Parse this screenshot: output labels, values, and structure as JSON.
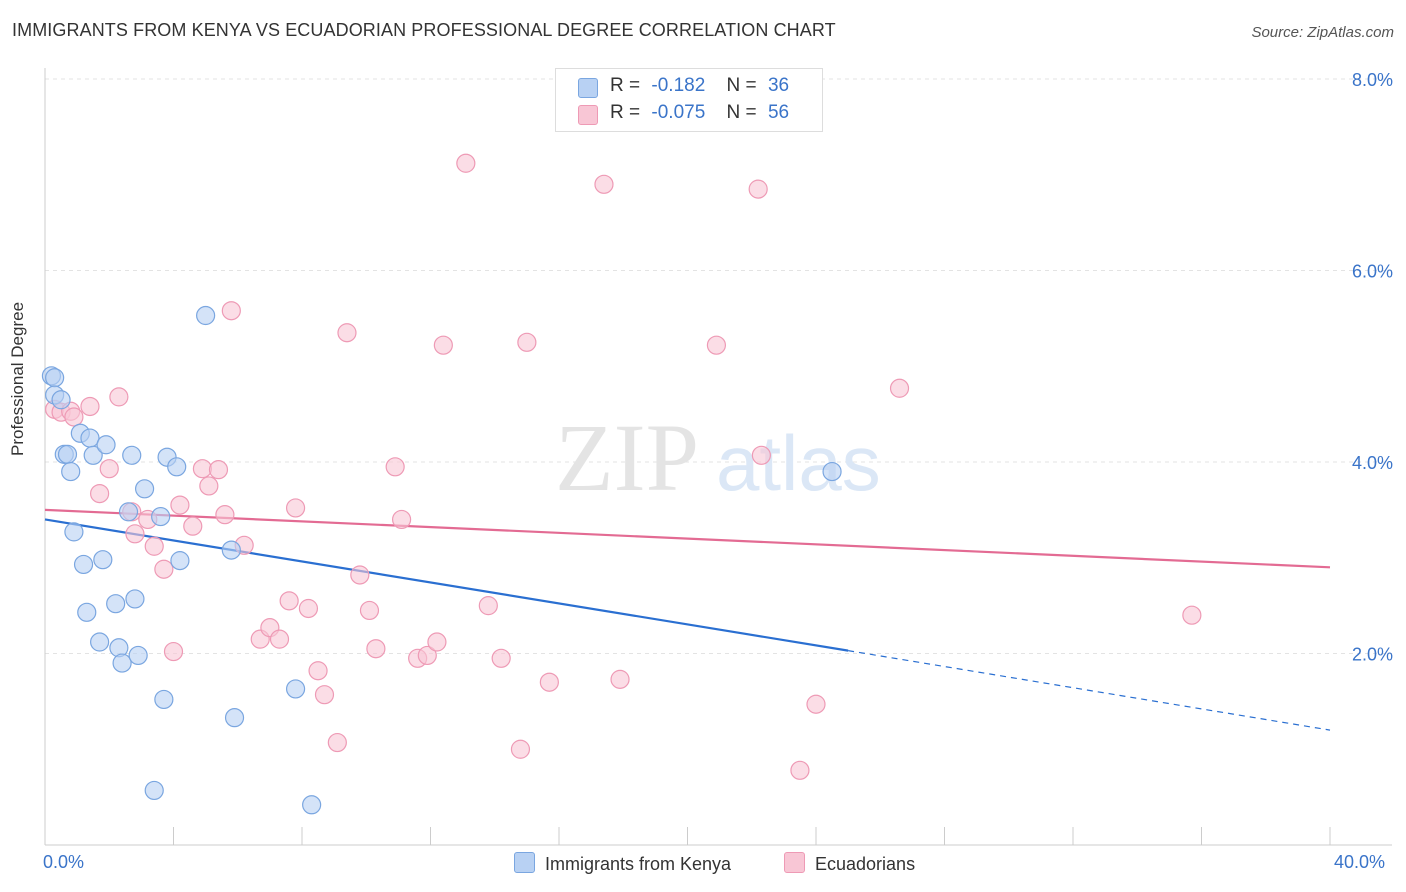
{
  "title": "IMMIGRANTS FROM KENYA VS ECUADORIAN PROFESSIONAL DEGREE CORRELATION CHART",
  "source": "Source: ZipAtlas.com",
  "watermark": {
    "part1": "ZIP",
    "part2": "atlas"
  },
  "colors": {
    "blue_fill": "#b8d1f3",
    "blue_stroke": "#7aa6e0",
    "blue_line": "#2a6fd1",
    "pink_fill": "#f8c6d5",
    "pink_stroke": "#ee9ab5",
    "pink_line": "#e36b93",
    "tick_label": "#3a74c9",
    "grid": "#e3e3e3"
  },
  "legend": {
    "rows": [
      {
        "r_label": "R =",
        "r_value": "-0.182",
        "n_label": "N =",
        "n_value": "36"
      },
      {
        "r_label": "R =",
        "r_value": "-0.075",
        "n_label": "N =",
        "n_value": "56"
      }
    ]
  },
  "chart_data": {
    "type": "scatter",
    "title": "IMMIGRANTS FROM KENYA VS ECUADORIAN PROFESSIONAL DEGREE CORRELATION CHART",
    "xlabel": "",
    "ylabel": "Professional Degree",
    "xlim": [
      0,
      40
    ],
    "ylim": [
      0,
      8
    ],
    "x_tick_labels": [
      "0.0%",
      "40.0%"
    ],
    "y_ticks": [
      2,
      4,
      6,
      8
    ],
    "y_tick_labels": [
      "2.0%",
      "4.0%",
      "6.0%",
      "8.0%"
    ],
    "grid": "horizontal dashed",
    "legend_position": "top-center",
    "series": [
      {
        "name": "Immigrants from Kenya",
        "color": "#7aa6e0",
        "points": [
          [
            0.2,
            4.9
          ],
          [
            0.3,
            4.88
          ],
          [
            0.3,
            4.7
          ],
          [
            0.5,
            4.65
          ],
          [
            0.6,
            4.08
          ],
          [
            0.7,
            4.08
          ],
          [
            0.8,
            3.9
          ],
          [
            0.9,
            3.27
          ],
          [
            1.1,
            4.3
          ],
          [
            1.2,
            2.93
          ],
          [
            1.3,
            2.43
          ],
          [
            1.4,
            4.25
          ],
          [
            1.5,
            4.07
          ],
          [
            1.7,
            2.12
          ],
          [
            1.8,
            2.98
          ],
          [
            1.9,
            4.18
          ],
          [
            2.2,
            2.52
          ],
          [
            2.3,
            2.06
          ],
          [
            2.4,
            1.9
          ],
          [
            2.6,
            3.48
          ],
          [
            2.7,
            4.07
          ],
          [
            2.8,
            2.57
          ],
          [
            2.9,
            1.98
          ],
          [
            3.1,
            3.72
          ],
          [
            3.4,
            0.57
          ],
          [
            3.6,
            3.43
          ],
          [
            3.7,
            1.52
          ],
          [
            3.8,
            4.05
          ],
          [
            4.1,
            3.95
          ],
          [
            4.2,
            2.97
          ],
          [
            5.0,
            5.53
          ],
          [
            5.8,
            3.08
          ],
          [
            5.9,
            1.33
          ],
          [
            7.8,
            1.63
          ],
          [
            8.3,
            0.42
          ],
          [
            24.5,
            3.9
          ]
        ]
      },
      {
        "name": "Ecuadorians",
        "color": "#ee9ab5",
        "points": [
          [
            0.3,
            4.55
          ],
          [
            0.5,
            4.52
          ],
          [
            0.8,
            4.53
          ],
          [
            0.9,
            4.47
          ],
          [
            1.4,
            4.58
          ],
          [
            1.7,
            3.67
          ],
          [
            2.0,
            3.93
          ],
          [
            2.3,
            4.68
          ],
          [
            2.7,
            3.48
          ],
          [
            2.8,
            3.25
          ],
          [
            3.2,
            3.4
          ],
          [
            3.4,
            3.12
          ],
          [
            3.7,
            2.88
          ],
          [
            4.0,
            2.02
          ],
          [
            4.2,
            3.55
          ],
          [
            4.6,
            3.33
          ],
          [
            4.9,
            3.93
          ],
          [
            5.1,
            3.75
          ],
          [
            5.4,
            3.92
          ],
          [
            5.6,
            3.45
          ],
          [
            5.8,
            5.58
          ],
          [
            6.2,
            3.13
          ],
          [
            6.7,
            2.15
          ],
          [
            7.0,
            2.27
          ],
          [
            7.3,
            2.15
          ],
          [
            7.6,
            2.55
          ],
          [
            7.8,
            3.52
          ],
          [
            8.2,
            2.47
          ],
          [
            8.5,
            1.82
          ],
          [
            8.7,
            1.57
          ],
          [
            9.1,
            1.07
          ],
          [
            9.4,
            5.35
          ],
          [
            9.8,
            2.82
          ],
          [
            10.1,
            2.45
          ],
          [
            10.3,
            2.05
          ],
          [
            10.9,
            3.95
          ],
          [
            11.1,
            3.4
          ],
          [
            11.6,
            1.95
          ],
          [
            11.9,
            1.98
          ],
          [
            12.2,
            2.12
          ],
          [
            12.4,
            5.22
          ],
          [
            13.1,
            7.12
          ],
          [
            13.8,
            2.5
          ],
          [
            14.2,
            1.95
          ],
          [
            14.8,
            1.0
          ],
          [
            15.0,
            5.25
          ],
          [
            15.7,
            1.7
          ],
          [
            17.4,
            6.9
          ],
          [
            17.9,
            1.73
          ],
          [
            20.9,
            5.22
          ],
          [
            22.2,
            6.85
          ],
          [
            22.3,
            4.07
          ],
          [
            23.5,
            0.78
          ],
          [
            24.0,
            1.47
          ],
          [
            26.6,
            4.77
          ],
          [
            35.7,
            2.4
          ]
        ]
      }
    ],
    "trendlines": [
      {
        "series": "Immigrants from Kenya",
        "x1": 0,
        "y1": 3.4,
        "x2": 25,
        "y2": 2.03,
        "dashed_to_x": 40,
        "dashed_to_y": 1.2
      },
      {
        "series": "Ecuadorians",
        "x1": 0,
        "y1": 3.5,
        "x2": 40,
        "y2": 2.9
      }
    ]
  }
}
